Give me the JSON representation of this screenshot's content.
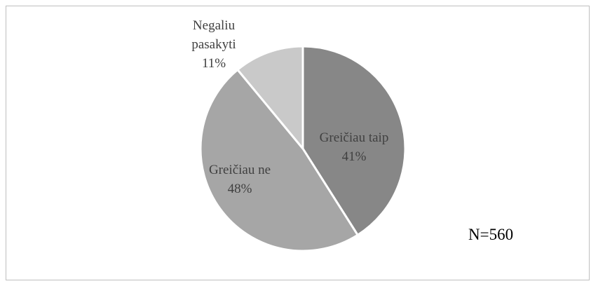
{
  "chart_data": {
    "type": "pie",
    "categories": [
      "Greičiau taip",
      "Greičiau ne",
      "Negaliu pasakyti"
    ],
    "values": [
      41,
      48,
      11
    ],
    "value_labels": [
      "41%",
      "48%",
      "11%"
    ],
    "colors": [
      "#878787",
      "#a6a6a6",
      "#c9c9c9"
    ],
    "annotation": "N=560"
  }
}
